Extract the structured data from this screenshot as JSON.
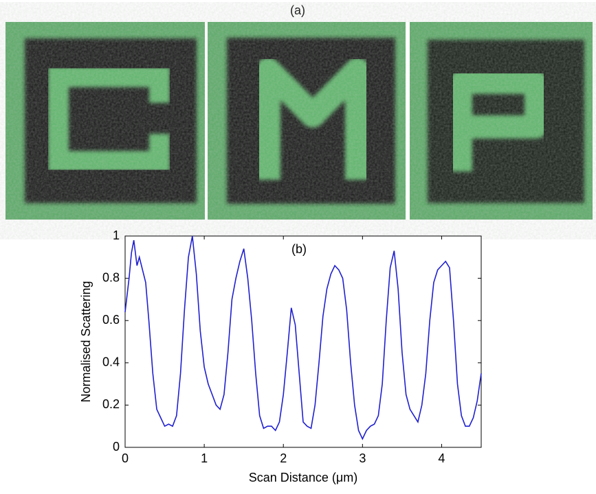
{
  "figure_label": "(a)",
  "chart_data": {
    "type": "line",
    "title": "(b)",
    "x_label": "Scan Distance (μm)",
    "y_label": "Normalised Scattering",
    "x": [
      0,
      0.05,
      0.08,
      0.11,
      0.15,
      0.18,
      0.22,
      0.26,
      0.3,
      0.35,
      0.4,
      0.45,
      0.5,
      0.55,
      0.6,
      0.65,
      0.7,
      0.75,
      0.8,
      0.85,
      0.9,
      0.95,
      1.0,
      1.05,
      1.1,
      1.15,
      1.2,
      1.25,
      1.3,
      1.35,
      1.4,
      1.45,
      1.5,
      1.55,
      1.6,
      1.65,
      1.7,
      1.75,
      1.8,
      1.85,
      1.9,
      1.95,
      2.0,
      2.05,
      2.1,
      2.15,
      2.2,
      2.25,
      2.3,
      2.35,
      2.4,
      2.45,
      2.5,
      2.55,
      2.6,
      2.65,
      2.7,
      2.75,
      2.8,
      2.85,
      2.9,
      2.95,
      3.0,
      3.05,
      3.1,
      3.15,
      3.2,
      3.25,
      3.3,
      3.35,
      3.4,
      3.45,
      3.5,
      3.55,
      3.6,
      3.65,
      3.7,
      3.75,
      3.8,
      3.85,
      3.9,
      3.95,
      4.0,
      4.05,
      4.1,
      4.15,
      4.2,
      4.25,
      4.3,
      4.35,
      4.4,
      4.45,
      4.5
    ],
    "series": [
      {
        "color": "#1f1fd0",
        "values": [
          0.64,
          0.8,
          0.92,
          0.98,
          0.86,
          0.9,
          0.84,
          0.78,
          0.6,
          0.35,
          0.18,
          0.14,
          0.1,
          0.11,
          0.1,
          0.15,
          0.35,
          0.65,
          0.9,
          1.0,
          0.82,
          0.55,
          0.38,
          0.3,
          0.25,
          0.2,
          0.18,
          0.25,
          0.45,
          0.7,
          0.8,
          0.88,
          0.94,
          0.8,
          0.6,
          0.35,
          0.15,
          0.09,
          0.1,
          0.1,
          0.08,
          0.12,
          0.25,
          0.45,
          0.66,
          0.58,
          0.35,
          0.12,
          0.1,
          0.09,
          0.2,
          0.4,
          0.62,
          0.75,
          0.82,
          0.86,
          0.84,
          0.8,
          0.65,
          0.4,
          0.2,
          0.08,
          0.04,
          0.08,
          0.1,
          0.11,
          0.15,
          0.3,
          0.6,
          0.85,
          0.93,
          0.75,
          0.45,
          0.25,
          0.18,
          0.15,
          0.12,
          0.2,
          0.35,
          0.6,
          0.78,
          0.84,
          0.86,
          0.88,
          0.85,
          0.6,
          0.3,
          0.15,
          0.1,
          0.1,
          0.14,
          0.22,
          0.35
        ]
      }
    ],
    "xlim": [
      0,
      4.5
    ],
    "ylim": [
      0,
      1
    ],
    "xticks": [
      0,
      1,
      2,
      3,
      4
    ],
    "yticks": [
      0,
      0.2,
      0.4,
      0.6,
      0.8,
      1
    ]
  }
}
